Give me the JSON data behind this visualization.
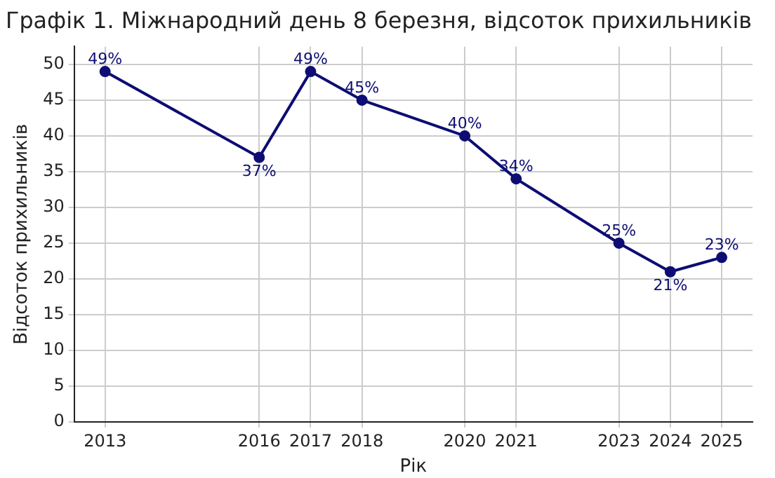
{
  "chart_data": {
    "type": "line",
    "title": "Графік 1. Міжнародний день 8 березня, відсоток прихильників",
    "xlabel": "Рік",
    "ylabel": "Відсоток прихильників",
    "x": [
      2013,
      2016,
      2017,
      2018,
      2020,
      2021,
      2023,
      2024,
      2025
    ],
    "series": [
      {
        "color": "#0d0d73",
        "values": [
          49,
          37,
          49,
          45,
          40,
          34,
          25,
          21,
          23
        ],
        "value_labels": [
          "49%",
          "37%",
          "49%",
          "45%",
          "40%",
          "34%",
          "25%",
          "21%",
          "23%"
        ]
      }
    ],
    "xlim": [
      2012.4,
      2025.6
    ],
    "xticks": [
      2013,
      2016,
      2017,
      2018,
      2020,
      2021,
      2023,
      2024,
      2025
    ],
    "ylim": [
      0,
      52.5
    ],
    "yticks": [
      0,
      5,
      10,
      15,
      20,
      25,
      30,
      35,
      40,
      45,
      50
    ],
    "grid": true,
    "marker": "circle",
    "line_style": "solid"
  }
}
